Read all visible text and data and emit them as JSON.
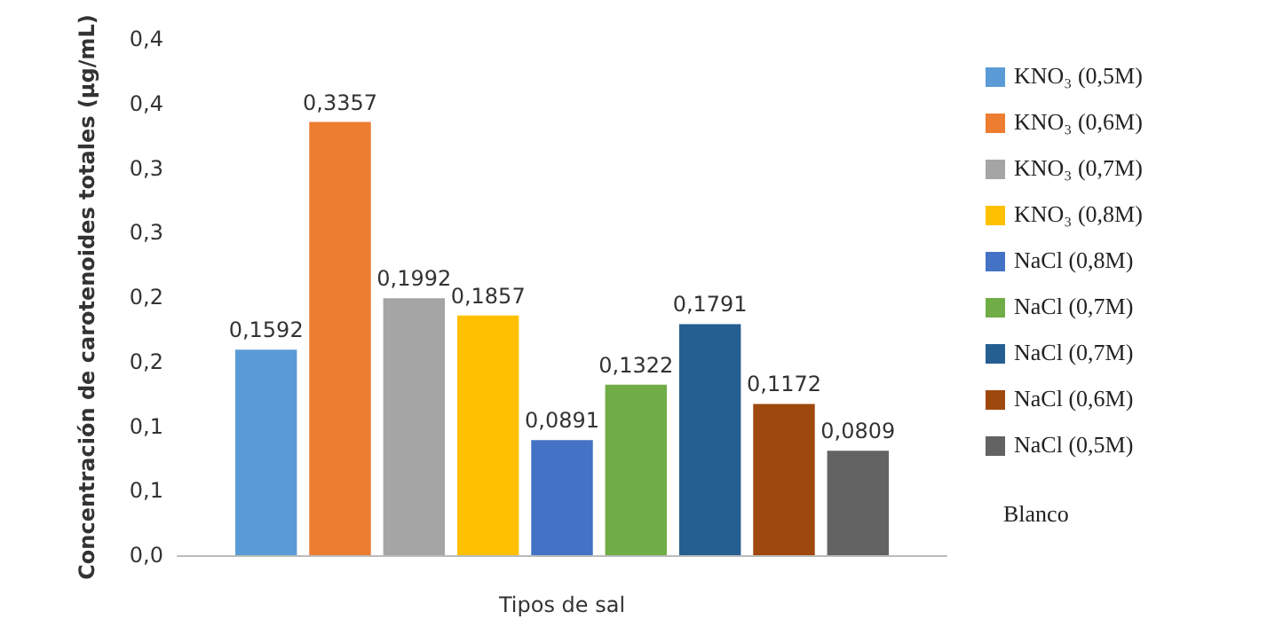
{
  "chart_data": {
    "type": "bar",
    "xlabel": "Tipos de sal",
    "ylabel": "Concentración de carotenoides totales (µg/mL)",
    "categories": [
      null
    ],
    "series": [
      {
        "name": "KNO₃ (0,5M)",
        "color": "#5b9bd5",
        "values": [
          0.1592
        ],
        "value_labels": [
          "0,1592"
        ]
      },
      {
        "name": "KNO₃ (0,6M)",
        "color": "#ed7d31",
        "values": [
          0.3357
        ],
        "value_labels": [
          "0,3357"
        ]
      },
      {
        "name": "KNO₃ (0,7M)",
        "color": "#a5a5a5",
        "values": [
          0.1992
        ],
        "value_labels": [
          "0,1992"
        ]
      },
      {
        "name": "KNO₃ (0,8M)",
        "color": "#ffc000",
        "values": [
          0.1857
        ],
        "value_labels": [
          "0,1857"
        ]
      },
      {
        "name": "NaCl (0,8M)",
        "color": "#4472c4",
        "values": [
          0.0891
        ],
        "value_labels": [
          "0,0891"
        ]
      },
      {
        "name": "NaCl (0,7M)",
        "color": "#70ad47",
        "values": [
          0.1322
        ],
        "value_labels": [
          "0,1322"
        ]
      },
      {
        "name": "NaCl (0,7M)",
        "color": "#255e91",
        "values": [
          0.1791
        ],
        "value_labels": [
          "0,1791"
        ]
      },
      {
        "name": "NaCl (0,6M)",
        "color": "#9e480e",
        "values": [
          0.1172
        ],
        "value_labels": [
          "0,1172"
        ]
      },
      {
        "name": "NaCl (0,5M)",
        "color": "#636363",
        "values": [
          0.0809
        ],
        "value_labels": [
          "0,0809"
        ]
      }
    ],
    "ylim": [
      0,
      0.4
    ],
    "yticks": [
      {
        "value": 0,
        "label": "0,0"
      },
      {
        "value": 0.05,
        "label": "0,1"
      },
      {
        "value": 0.1,
        "label": "0,1"
      },
      {
        "value": 0.15,
        "label": "0,2"
      },
      {
        "value": 0.2,
        "label": "0,2"
      },
      {
        "value": 0.25,
        "label": "0,3"
      },
      {
        "value": 0.3,
        "label": "0,3"
      },
      {
        "value": 0.35,
        "label": "0,4"
      },
      {
        "value": 0.4,
        "label": "0,4"
      }
    ],
    "legend": "right",
    "grid": false,
    "annotations": [
      "Blanco"
    ]
  }
}
